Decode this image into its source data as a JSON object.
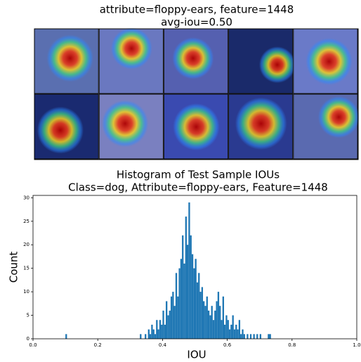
{
  "figure": {
    "title": [
      "attribute=floppy-ears, feature=1448",
      "avg-iou=0.50"
    ]
  },
  "chart_data": {
    "type": "histogram",
    "title": [
      "Histogram of Test Sample IOUs",
      "Class=dog, Attribute=floppy-ears, Feature=1448"
    ],
    "xlabel": "IOU",
    "ylabel": "Count",
    "color": "#1f77b4",
    "bins": [
      0.1,
      0.105,
      0.33,
      0.335,
      0.34,
      0.345,
      0.35,
      0.355,
      0.36,
      0.365,
      0.37,
      0.375,
      0.38,
      0.385,
      0.39,
      0.395,
      0.4,
      0.405,
      0.41,
      0.415,
      0.42,
      0.425,
      0.43,
      0.435,
      0.44,
      0.445,
      0.45,
      0.455,
      0.46,
      0.465,
      0.47,
      0.475,
      0.48,
      0.485,
      0.49,
      0.495,
      0.5,
      0.505,
      0.51,
      0.515,
      0.52,
      0.525,
      0.53,
      0.535,
      0.54,
      0.545,
      0.55,
      0.555,
      0.56,
      0.565,
      0.57,
      0.575,
      0.58,
      0.585,
      0.59,
      0.595,
      0.6,
      0.605,
      0.61,
      0.615,
      0.62,
      0.625,
      0.63,
      0.635,
      0.64,
      0.645,
      0.65,
      0.655,
      0.66,
      0.665,
      0.67,
      0.675,
      0.68,
      0.685,
      0.69,
      0.695,
      0.7,
      0.705,
      0.71,
      0.715,
      0.72,
      0.725,
      0.73,
      0.735
    ],
    "values": [
      1,
      0,
      1,
      0,
      0,
      1,
      0,
      2,
      1,
      3,
      2,
      1,
      4,
      2,
      4,
      3,
      6,
      3,
      8,
      5,
      6,
      9,
      10,
      7,
      14,
      9,
      15,
      17,
      22,
      16,
      26,
      20,
      29,
      22,
      18,
      15,
      17,
      12,
      14,
      10,
      11,
      8,
      7,
      9,
      6,
      5,
      7,
      4,
      6,
      8,
      10,
      7,
      4,
      9,
      3,
      5,
      4,
      2,
      3,
      5,
      2,
      3,
      2,
      4,
      1,
      2,
      1,
      0,
      1,
      0,
      1,
      0,
      1,
      0,
      1,
      0,
      1,
      0,
      0,
      0,
      0,
      1,
      1
    ],
    "xlim": [
      0,
      1
    ],
    "ylim": [
      0,
      30.5
    ],
    "xticks": [
      {
        "value": 0,
        "label": "0.0"
      },
      0.2,
      0.4,
      0.6,
      0.8,
      {
        "value": 1,
        "label": "1.0"
      }
    ],
    "yticks": [
      0,
      5,
      10,
      15,
      20,
      25,
      30
    ]
  }
}
